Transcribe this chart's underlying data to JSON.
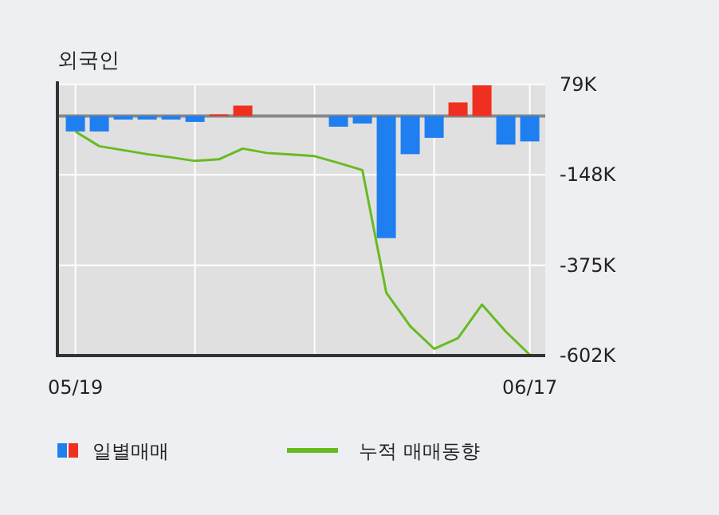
{
  "chart_data": {
    "type": "bar",
    "title": "외국인",
    "categories": [
      "05/19",
      null,
      null,
      null,
      null,
      null,
      null,
      null,
      null,
      null,
      null,
      null,
      null,
      null,
      null,
      null,
      null,
      null,
      null,
      "06/17"
    ],
    "series": [
      {
        "name": "일별매매",
        "colors": [
          "#1f7ef0",
          "#1f7ef0",
          "#1f7ef0",
          "#1f7ef0",
          "#1f7ef0",
          "#1f7ef0",
          "#f0301e",
          "#f0301e",
          "#1f7ef0",
          "#1f7ef0",
          "#1f7ef0",
          "#1f7ef0",
          "#1f7ef0",
          "#1f7ef0",
          "#1f7ef0",
          "#1f7ef0",
          "#f0301e",
          "#f0301e",
          "#1f7ef0",
          "#1f7ef0"
        ],
        "values": [
          -39000,
          -39000,
          -9000,
          -9000,
          -9000,
          -15000,
          4000,
          26000,
          0,
          0,
          0,
          -27000,
          -19000,
          -307000,
          -96000,
          -55000,
          34000,
          77000,
          -72000,
          -64000
        ]
      },
      {
        "type": "line",
        "name": "누적 매매동향",
        "color": "#66bb22",
        "values": [
          -39000,
          -76000,
          -86000,
          -96000,
          -104000,
          -113000,
          -109000,
          -82000,
          -93000,
          -97000,
          -101000,
          -118000,
          -136000,
          -444000,
          -528000,
          -585000,
          -558000,
          -474000,
          -542000,
          -600000
        ]
      }
    ],
    "ylim": [
      -602000,
      79000
    ],
    "yticks": [
      {
        "value": 79000,
        "label": "79K"
      },
      {
        "value": -148000,
        "label": "-148K"
      },
      {
        "value": -375000,
        "label": "-375K"
      },
      {
        "value": -602000,
        "label": "-602K"
      }
    ],
    "ref_lines": [
      {
        "axis": "y",
        "value": 0,
        "color": "#888888"
      }
    ],
    "grid": true,
    "legend": "bottom"
  }
}
